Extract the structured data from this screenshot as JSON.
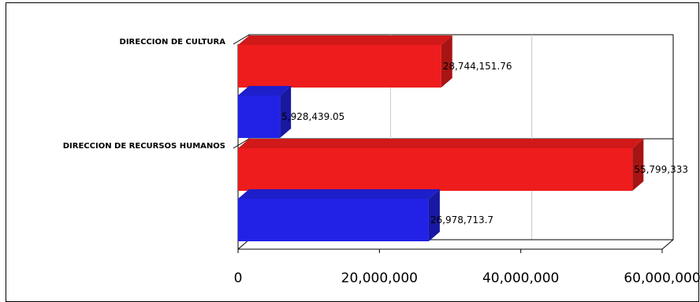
{
  "chart_data": {
    "type": "bar",
    "orientation": "horizontal",
    "style": "3d",
    "categories": [
      "DIRECCION DE CULTURA",
      "DIRECCION DE RECURSOS HUMANOS"
    ],
    "series": [
      {
        "values": [
          28744151.76,
          55799333
        ],
        "color": "#ee1c1c"
      },
      {
        "values": [
          5928439.05,
          26978713.7
        ],
        "color": "#2222e6"
      }
    ],
    "data_labels": [
      [
        "28,744,151.76",
        "55,799,333"
      ],
      [
        "5,928,439.05",
        "26,978,713.7"
      ]
    ],
    "xlim": [
      0,
      60000000
    ],
    "xticks": [
      0,
      20000000,
      40000000,
      60000000
    ],
    "xtick_labels": [
      "0",
      "20,000,000",
      "40,000,000",
      "60,000,000"
    ],
    "grid": true,
    "legend": "none"
  }
}
